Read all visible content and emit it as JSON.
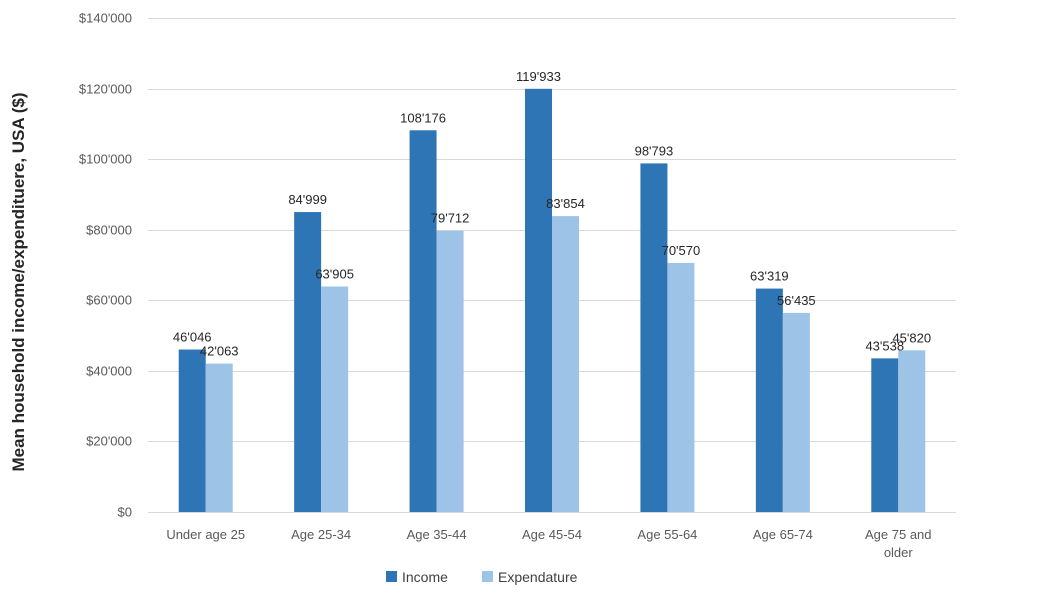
{
  "chart_data": {
    "type": "bar",
    "title": "",
    "xlabel": "",
    "ylabel": "Mean household income/expendituere, USA ($)",
    "ylim": [
      0,
      140000
    ],
    "y_ticks": [
      0,
      20000,
      40000,
      60000,
      80000,
      100000,
      120000,
      140000
    ],
    "y_tick_labels": [
      "$0",
      "$20'000",
      "$40'000",
      "$60'000",
      "$80'000",
      "$100'000",
      "$120'000",
      "$140'000"
    ],
    "categories": [
      [
        "Under age 25"
      ],
      [
        "Age 25-34"
      ],
      [
        "Age 35-44"
      ],
      [
        "Age 45-54"
      ],
      [
        "Age 55-64"
      ],
      [
        "Age 65-74"
      ],
      [
        "Age 75 and",
        "older"
      ]
    ],
    "series": [
      {
        "name": "Income",
        "color": "#2E75B6",
        "values": [
          46046,
          84999,
          108176,
          119933,
          98793,
          63319,
          43538
        ],
        "labels": [
          "46'046",
          "84'999",
          "108'176",
          "119'933",
          "98'793",
          "63'319",
          "43'538"
        ]
      },
      {
        "name": "Expendature",
        "color": "#9DC3E6",
        "values": [
          42063,
          63905,
          79712,
          83854,
          70570,
          56435,
          45820
        ],
        "labels": [
          "42'063",
          "63'905",
          "79'712",
          "83'854",
          "70'570",
          "56'435",
          "45'820"
        ]
      }
    ],
    "grid": true,
    "gridline_color": "#D9D9D9",
    "legend": "bottom-center"
  }
}
